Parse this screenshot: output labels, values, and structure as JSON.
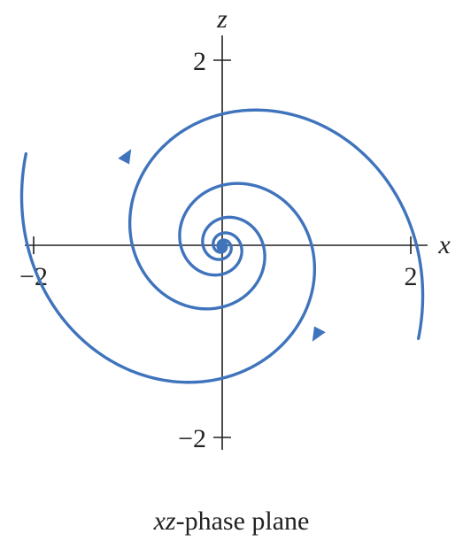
{
  "axes": {
    "x_name": "x",
    "z_name": "z",
    "x_ticks": [
      "−2",
      "2"
    ],
    "z_ticks": [
      "2",
      "−2"
    ]
  },
  "caption": {
    "variables": "xz",
    "text": "-phase plane"
  },
  "colors": {
    "curve": "#3f74bd",
    "axes": "#222222"
  }
}
